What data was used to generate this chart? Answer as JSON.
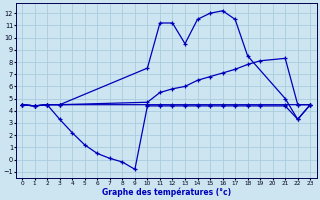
{
  "title": "Graphe des températures (°c)",
  "bg_color": "#cce5f0",
  "grid_color": "#aaccdd",
  "line_color": "#0000bb",
  "xlim": [
    -0.5,
    23.5
  ],
  "ylim": [
    -1.5,
    12.8
  ],
  "xticks": [
    0,
    1,
    2,
    3,
    4,
    5,
    6,
    7,
    8,
    9,
    10,
    11,
    12,
    13,
    14,
    15,
    16,
    17,
    18,
    19,
    20,
    21,
    22,
    23
  ],
  "yticks": [
    -1,
    0,
    1,
    2,
    3,
    4,
    5,
    6,
    7,
    8,
    9,
    10,
    11,
    12
  ],
  "curve1_x": [
    0,
    1,
    2,
    3,
    10,
    11,
    12,
    13,
    14,
    15,
    16,
    17,
    18,
    21,
    22,
    23
  ],
  "curve1_y": [
    4.5,
    4.4,
    4.5,
    4.5,
    7.5,
    11.2,
    11.2,
    9.5,
    11.5,
    12.0,
    12.2,
    11.5,
    8.5,
    5.0,
    3.3,
    4.5
  ],
  "curve2_x": [
    0,
    1,
    2,
    3,
    10,
    11,
    12,
    13,
    14,
    15,
    16,
    17,
    18,
    19,
    21,
    22,
    23
  ],
  "curve2_y": [
    4.5,
    4.4,
    4.5,
    4.5,
    4.7,
    5.5,
    5.8,
    6.0,
    6.5,
    6.8,
    7.1,
    7.4,
    7.8,
    8.1,
    8.3,
    4.5,
    4.5
  ],
  "curve3_x": [
    0,
    1,
    2,
    3,
    10,
    11,
    12,
    13,
    14,
    15,
    16,
    17,
    18,
    19,
    21,
    22,
    23
  ],
  "curve3_y": [
    4.5,
    4.4,
    4.5,
    4.5,
    4.5,
    4.5,
    4.5,
    4.5,
    4.5,
    4.5,
    4.5,
    4.5,
    4.5,
    4.5,
    4.5,
    4.5,
    4.5
  ],
  "curve4_x": [
    0,
    1,
    2,
    3,
    4,
    5,
    6,
    7,
    8,
    9,
    10,
    11,
    12,
    13,
    14,
    15,
    16,
    17,
    18,
    19,
    21,
    22,
    23
  ],
  "curve4_y": [
    4.5,
    4.4,
    4.5,
    3.3,
    2.2,
    1.2,
    0.5,
    0.1,
    -0.2,
    -0.8,
    4.4,
    4.4,
    4.4,
    4.4,
    4.4,
    4.4,
    4.4,
    4.4,
    4.4,
    4.4,
    4.4,
    3.3,
    4.5
  ]
}
